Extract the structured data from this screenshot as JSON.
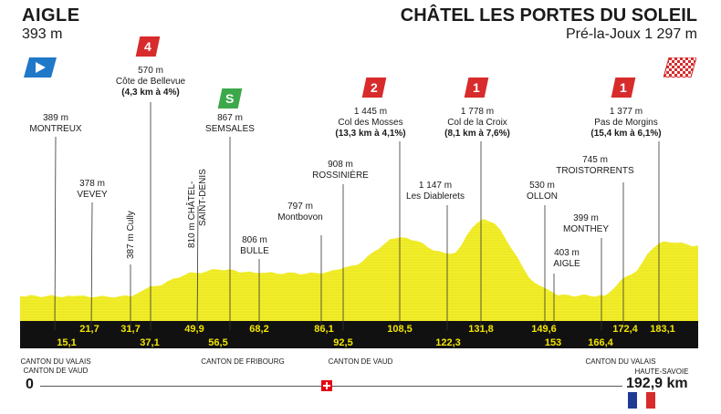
{
  "colors": {
    "profile": "#f2ee2c",
    "band": "#111111",
    "km_text": "#f2e600",
    "climb_red": "#d82b2b",
    "sprint_green": "#3ca84a",
    "start_blue": "#1f78c8"
  },
  "start": {
    "name": "AIGLE",
    "altitude": "393 m"
  },
  "finish": {
    "name": "CHÂTEL LES PORTES DU SOLEIL",
    "altitude": "Pré-la-Joux 1 297 m"
  },
  "badges": {
    "c1": "4",
    "sprint": "S",
    "c2": "2",
    "c3": "1",
    "c4": "1"
  },
  "labels": {
    "montreux": {
      "alt": "389 m",
      "name": "MONTREUX"
    },
    "bellevue": {
      "alt": "570 m",
      "name": "Côte de Bellevue",
      "climb": "(4,3 km à 4%)"
    },
    "vevey": {
      "alt": "378 m",
      "name": "VEVEY"
    },
    "cully": "387 m Cully",
    "chatel_st_denis": "810 m CHÂTEL-",
    "chatel_st_denis2": "SAINT-DENIS",
    "semsales": {
      "alt": "867 m",
      "name": "SEMSALES"
    },
    "bulle": {
      "alt": "806 m",
      "name": "BULLE"
    },
    "montbovon": {
      "alt": "797 m",
      "name": "Montbovon"
    },
    "rossiniere": {
      "alt": "908 m",
      "name": "ROSSINIÈRE"
    },
    "mosses": {
      "alt": "1 445 m",
      "name": "Col des Mosses",
      "climb": "(13,3 km à 4,1%)"
    },
    "diablerets": {
      "alt": "1 147 m",
      "name": "Les Diablerets"
    },
    "croix": {
      "alt": "1 778 m",
      "name": "Col de la Croix",
      "climb": "(8,1 km à 7,6%)"
    },
    "ollon": {
      "alt": "530 m",
      "name": "OLLON"
    },
    "aigle2": {
      "alt": "403 m",
      "name": "AIGLE"
    },
    "monthey": {
      "alt": "399 m",
      "name": "MONTHEY"
    },
    "troistorrents": {
      "alt": "745 m",
      "name": "TROISTORRENTS"
    },
    "morgins": {
      "alt": "1 377 m",
      "name": "Pas de Morgins",
      "climb": "(15,4 km à 6,1%)"
    }
  },
  "km_top": [
    "21,7",
    "31,7",
    "49,9",
    "68,2",
    "86,1",
    "108,5",
    "131,8",
    "149,6",
    "172,4",
    "183,1"
  ],
  "km_bottom": [
    "15,1",
    "37,1",
    "56,5",
    "92,5",
    "122,3",
    "153",
    "166,4"
  ],
  "cantons": {
    "c1a": "CANTON DU VALAIS",
    "c1b": "CANTON DE VAUD",
    "c2": "CANTON DE FRIBOURG",
    "c3": "CANTON DE VAUD",
    "c4": "CANTON DU VALAIS",
    "c5": "HAUTE-SAVOIE"
  },
  "distance": {
    "start": "0",
    "end": "192,9 km"
  },
  "chart_data": {
    "type": "area",
    "title": "",
    "xlabel": "",
    "ylabel": "",
    "x": [
      0,
      15.1,
      21.7,
      31.7,
      37.1,
      49.9,
      56.5,
      68.2,
      86.1,
      92.5,
      108.5,
      122.3,
      131.8,
      149.6,
      153,
      166.4,
      172.4,
      183.1,
      192.9
    ],
    "y": [
      393,
      389,
      378,
      387,
      570,
      810,
      867,
      806,
      797,
      908,
      1445,
      1147,
      1778,
      530,
      403,
      399,
      745,
      1377,
      1297
    ]
  }
}
